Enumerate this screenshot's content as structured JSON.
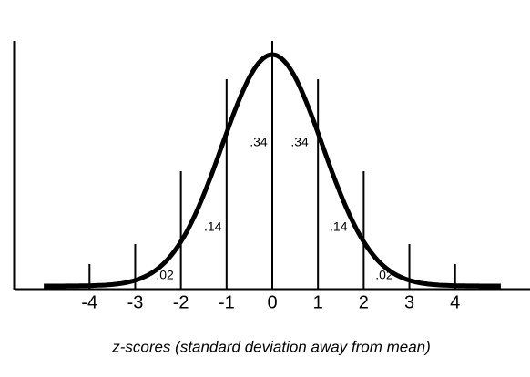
{
  "chart_data": {
    "type": "normal-curve",
    "x_label": "z-scores (standard deviation away from mean)",
    "xlim": [
      -5.6,
      5.6
    ],
    "xticks": [
      -4,
      -3,
      -2,
      -1,
      0,
      1,
      2,
      3,
      4
    ],
    "area_labels": [
      ".02",
      ".14",
      ".34",
      ".34",
      ".14",
      ".02"
    ],
    "color": "#000000"
  }
}
